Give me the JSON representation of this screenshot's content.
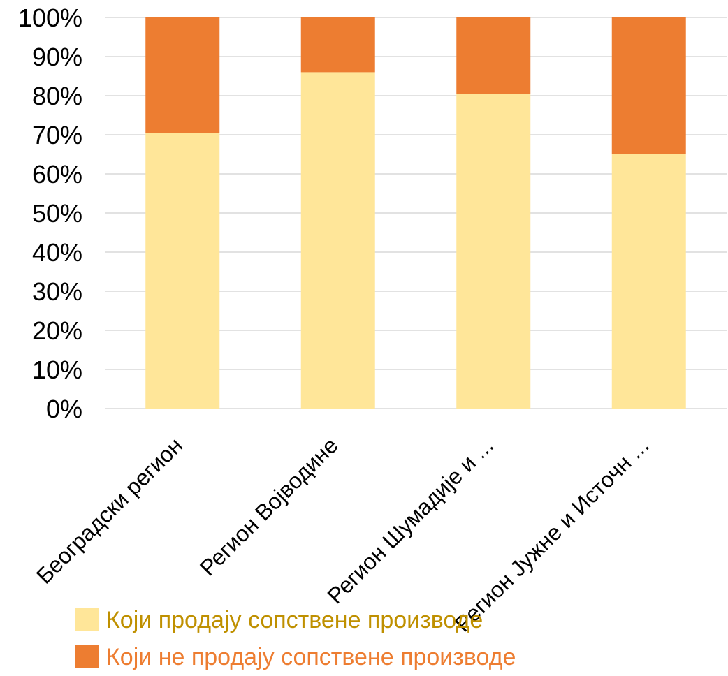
{
  "chart_data": {
    "type": "bar",
    "stacked": true,
    "percent": true,
    "title": "",
    "xlabel": "",
    "ylabel": "",
    "ylim": [
      0,
      100
    ],
    "yticks": [
      0,
      10,
      20,
      30,
      40,
      50,
      60,
      70,
      80,
      90,
      100
    ],
    "ytick_labels": [
      "0%",
      "10%",
      "20%",
      "30%",
      "40%",
      "50%",
      "60%",
      "70%",
      "80%",
      "90%",
      "100%"
    ],
    "grid": true,
    "legend_position": "bottom",
    "categories": [
      "Београдски регион",
      "Регион Војводине",
      "Регион Шумадије и ...",
      "Регион Јужне и Источн ..."
    ],
    "series": [
      {
        "name": "Који продају сопствене производе",
        "color": "#FFE699",
        "text_color": "#BF9000",
        "values": [
          70.5,
          86,
          80.5,
          65
        ]
      },
      {
        "name": "Који не продају сопствене производе",
        "color": "#ED7D31",
        "text_color": "#ED7D31",
        "values": [
          29.5,
          14,
          19.5,
          35
        ]
      }
    ]
  }
}
